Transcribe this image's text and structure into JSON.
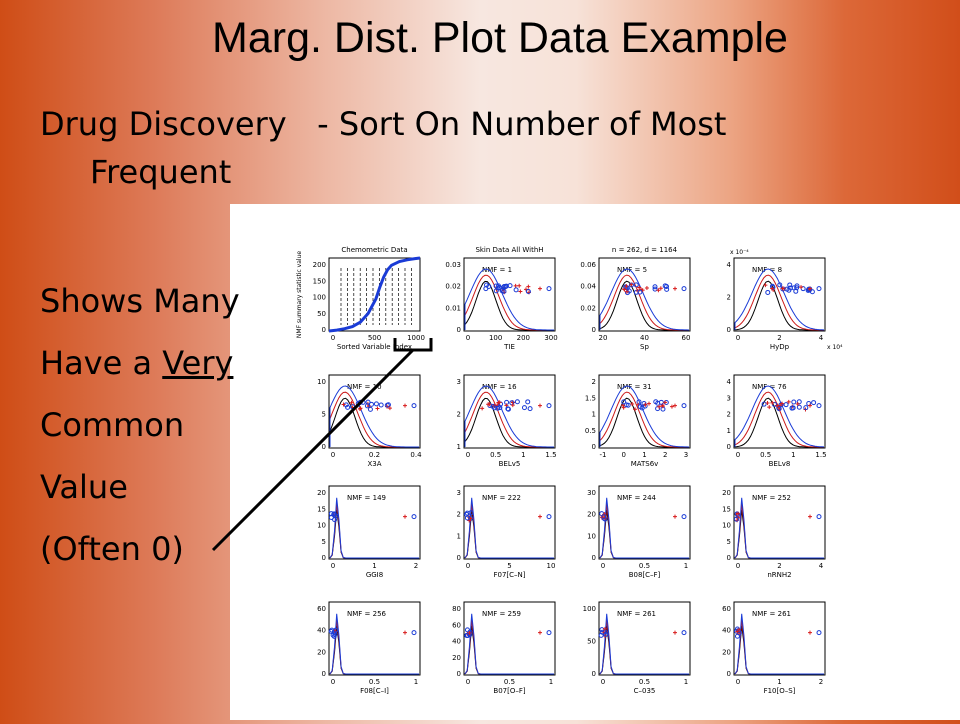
{
  "slide": {
    "title": "Marg. Dist. Plot Data Example",
    "subtitle_part1": "Drug Discovery",
    "subtitle_part2": "- Sort On Number of Most",
    "subtitle_line2": "Frequent",
    "bullets": [
      "Shows Many",
      "Have a",
      "Very",
      "Common",
      "Value",
      "(Often 0)"
    ]
  },
  "chart_data": [
    {
      "type": "line",
      "title": "Chemometric Data",
      "xlabel": "Sorted Variable Index",
      "ylabel": "NMF summary statistic value",
      "xlim": [
        0,
        1164
      ],
      "ylim": [
        0,
        250
      ],
      "x_ticks": [
        "0",
        "500",
        "1000"
      ],
      "y_ticks": [
        "0",
        "50",
        "100",
        "150",
        "200"
      ],
      "x": [
        0,
        100,
        200,
        300,
        400,
        500,
        600,
        650,
        700,
        750,
        800,
        900,
        1000,
        1100,
        1164
      ],
      "y": [
        0,
        3,
        8,
        15,
        30,
        60,
        110,
        150,
        185,
        210,
        225,
        238,
        244,
        248,
        250
      ]
    },
    {
      "type": "scatter",
      "title": "Skin Data All WithH",
      "xlabel": "TIE",
      "annotation": "NMF = 1",
      "x_ticks": [
        "0",
        "100",
        "200",
        "300"
      ],
      "y_ticks": [
        "0",
        "0.01",
        "0.02",
        "0.03"
      ]
    },
    {
      "type": "scatter",
      "title": "n = 262, d = 1164",
      "xlabel": "Sp",
      "annotation": "NMF = 5",
      "x_ticks": [
        "20",
        "40",
        "60"
      ],
      "y_ticks": [
        "0",
        "0.02",
        "0.04",
        "0.06"
      ]
    },
    {
      "type": "scatter",
      "xlabel": "HyDp",
      "annotation": "NMF = 8",
      "x_ticks": [
        "0",
        "2",
        "4"
      ],
      "y_ticks": [
        "0",
        "2",
        "4"
      ],
      "y_exponent": "x 10⁻⁴",
      "x_exponent": "x 10⁴"
    },
    {
      "type": "scatter",
      "xlabel": "X3A",
      "annotation": "NMF = 10",
      "x_ticks": [
        "0",
        "0.2",
        "0.4"
      ],
      "y_ticks": [
        "0",
        "5",
        "10"
      ]
    },
    {
      "type": "scatter",
      "xlabel": "BELv5",
      "annotation": "NMF = 16",
      "x_ticks": [
        "0",
        "0.5",
        "1",
        "1.5"
      ],
      "y_ticks": [
        "1",
        "2",
        "3"
      ]
    },
    {
      "type": "scatter",
      "xlabel": "MATS6v",
      "annotation": "NMF = 31",
      "x_ticks": [
        "-1",
        "0",
        "1",
        "2",
        "3"
      ],
      "y_ticks": [
        "0",
        "0.5",
        "1",
        "1.5",
        "2"
      ]
    },
    {
      "type": "scatter",
      "xlabel": "BELv8",
      "annotation": "NMF = 76",
      "x_ticks": [
        "0",
        "0.5",
        "1",
        "1.5"
      ],
      "y_ticks": [
        "0",
        "1",
        "2",
        "3",
        "4"
      ]
    },
    {
      "type": "scatter",
      "xlabel": "GGI8",
      "annotation": "NMF = 149",
      "x_ticks": [
        "0",
        "1",
        "2"
      ],
      "y_ticks": [
        "0",
        "5",
        "10",
        "15",
        "20"
      ]
    },
    {
      "type": "scatter",
      "xlabel": "F07[C–N]",
      "annotation": "NMF = 222",
      "x_ticks": [
        "0",
        "5",
        "10"
      ],
      "y_ticks": [
        "0",
        "1",
        "2",
        "3"
      ]
    },
    {
      "type": "scatter",
      "xlabel": "B08[C–F]",
      "annotation": "NMF = 244",
      "x_ticks": [
        "0",
        "0.5",
        "1"
      ],
      "y_ticks": [
        "0",
        "10",
        "20",
        "30"
      ]
    },
    {
      "type": "scatter",
      "xlabel": "nRNH2",
      "annotation": "NMF = 252",
      "x_ticks": [
        "0",
        "2",
        "4"
      ],
      "y_ticks": [
        "0",
        "5",
        "10",
        "15",
        "20"
      ]
    },
    {
      "type": "scatter",
      "xlabel": "F08[C–I]",
      "annotation": "NMF = 256",
      "x_ticks": [
        "0",
        "0.5",
        "1"
      ],
      "y_ticks": [
        "0",
        "20",
        "40",
        "60"
      ]
    },
    {
      "type": "scatter",
      "xlabel": "B07[O–F]",
      "annotation": "NMF = 259",
      "x_ticks": [
        "0",
        "0.5",
        "1"
      ],
      "y_ticks": [
        "0",
        "20",
        "40",
        "60",
        "80"
      ]
    },
    {
      "type": "scatter",
      "xlabel": "C–035",
      "annotation": "NMF = 261",
      "x_ticks": [
        "0",
        "0.5",
        "1"
      ],
      "y_ticks": [
        "0",
        "50",
        "100"
      ]
    },
    {
      "type": "scatter",
      "xlabel": "F10[O–S]",
      "annotation": "NMF = 261",
      "x_ticks": [
        "0",
        "1",
        "2"
      ],
      "y_ticks": [
        "0",
        "20",
        "40",
        "60"
      ]
    }
  ]
}
